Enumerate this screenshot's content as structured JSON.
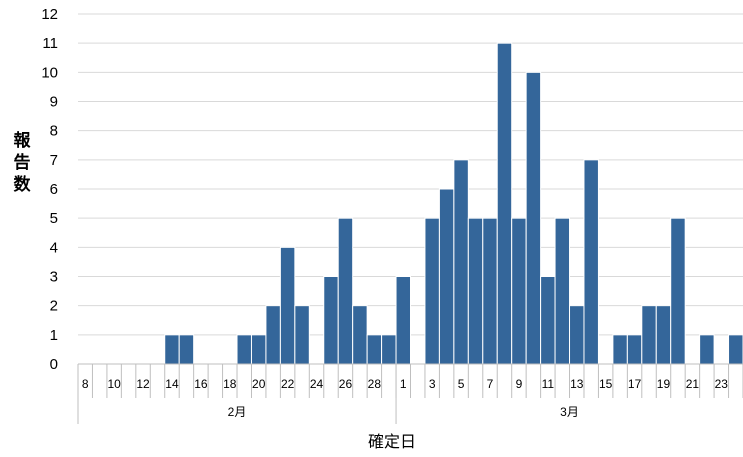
{
  "chart_data": {
    "type": "bar",
    "ylabel": "報告数",
    "xlabel": "確定日",
    "ylim": [
      0,
      12
    ],
    "yticks": [
      "0",
      "1",
      "2",
      "3",
      "4",
      "5",
      "6",
      "7",
      "8",
      "9",
      "10",
      "11",
      "12"
    ],
    "grid": true,
    "bar_color": "#34669A",
    "categories": [
      "8",
      "9",
      "10",
      "11",
      "12",
      "13",
      "14",
      "15",
      "16",
      "17",
      "18",
      "19",
      "20",
      "21",
      "22",
      "23",
      "24",
      "25",
      "26",
      "27",
      "28",
      "29",
      "1",
      "2",
      "3",
      "4",
      "5",
      "6",
      "7",
      "8",
      "9",
      "10",
      "11",
      "12",
      "13",
      "14",
      "15",
      "16",
      "17",
      "18",
      "19",
      "20",
      "21",
      "22",
      "23",
      "24"
    ],
    "tick_labels": [
      "8",
      "",
      "10",
      "",
      "12",
      "",
      "14",
      "",
      "16",
      "",
      "18",
      "",
      "20",
      "",
      "22",
      "",
      "24",
      "",
      "26",
      "",
      "28",
      "",
      "1",
      "",
      "3",
      "",
      "5",
      "",
      "7",
      "",
      "9",
      "",
      "11",
      "",
      "13",
      "",
      "15",
      "",
      "17",
      "",
      "19",
      "",
      "21",
      "",
      "23",
      ""
    ],
    "values": [
      0,
      0,
      0,
      0,
      0,
      0,
      1,
      1,
      0,
      0,
      0,
      1,
      1,
      2,
      4,
      2,
      0,
      3,
      5,
      2,
      1,
      1,
      3,
      0,
      5,
      6,
      7,
      5,
      5,
      11,
      5,
      10,
      3,
      5,
      2,
      7,
      0,
      1,
      1,
      2,
      2,
      5,
      0,
      1,
      0,
      1
    ],
    "months": [
      {
        "label": "2月",
        "start": 0,
        "end": 21
      },
      {
        "label": "3月",
        "start": 22,
        "end": 45
      }
    ]
  }
}
